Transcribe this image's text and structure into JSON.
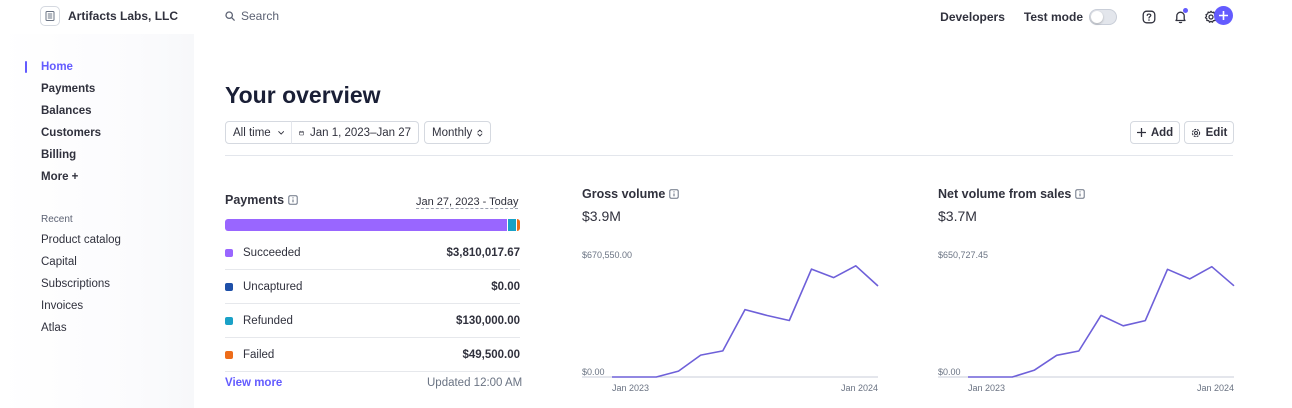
{
  "app": {
    "account_name": "Artifacts Labs, LLC",
    "search_placeholder": "Search",
    "developers_label": "Developers",
    "test_mode_label": "Test mode"
  },
  "colors": {
    "accent": "#635bff",
    "succeeded": "#9966ff",
    "uncaptured": "#1e4fa8",
    "refunded": "#1aa1c7",
    "failed": "#ed6c1a",
    "line": "#6e60d9"
  },
  "sidebar": {
    "items": [
      {
        "label": "Home",
        "active": true
      },
      {
        "label": "Payments"
      },
      {
        "label": "Balances"
      },
      {
        "label": "Customers"
      },
      {
        "label": "Billing"
      },
      {
        "label": "More +"
      }
    ],
    "recent_label": "Recent",
    "recent_items": [
      "Product catalog",
      "Capital",
      "Subscriptions",
      "Invoices",
      "Atlas"
    ]
  },
  "main": {
    "title": "Your overview",
    "filters": {
      "range": "All time",
      "dates": "Jan 1, 2023–Jan 27",
      "interval": "Monthly"
    },
    "add_label": "Add",
    "edit_label": "Edit"
  },
  "payments": {
    "title": "Payments",
    "date_range": "Jan 27, 2023 - Today",
    "breakdown": [
      {
        "label": "Succeeded",
        "value": "$3,810,017.67",
        "amount": 3810017.67,
        "color": "#9966ff"
      },
      {
        "label": "Uncaptured",
        "value": "$0.00",
        "amount": 0,
        "color": "#1e4fa8"
      },
      {
        "label": "Refunded",
        "value": "$130,000.00",
        "amount": 130000,
        "color": "#1aa1c7"
      },
      {
        "label": "Failed",
        "value": "$49,500.00",
        "amount": 49500,
        "color": "#ed6c1a"
      }
    ],
    "view_more": "View more",
    "updated": "Updated 12:00 AM"
  },
  "chart_data": [
    {
      "type": "line",
      "title": "Gross volume",
      "total": "$3.9M",
      "y_max_label": "$670,550.00",
      "y_min_label": "$0.00",
      "x_start_label": "Jan 2023",
      "x_end_label": "Jan 2024",
      "ylim": [
        0,
        670550
      ],
      "x": [
        "2023-01",
        "2023-02",
        "2023-03",
        "2023-04",
        "2023-05",
        "2023-06",
        "2023-07",
        "2023-08",
        "2023-09",
        "2023-10",
        "2023-11",
        "2023-12",
        "2024-01"
      ],
      "values": [
        0,
        0,
        0,
        35000,
        130000,
        155000,
        400000,
        365000,
        335000,
        640000,
        590000,
        660000,
        540000
      ]
    },
    {
      "type": "line",
      "title": "Net volume from sales",
      "total": "$3.7M",
      "y_max_label": "$650,727.45",
      "y_min_label": "$0.00",
      "x_start_label": "Jan 2023",
      "x_end_label": "Jan 2024",
      "ylim": [
        0,
        650727.45
      ],
      "x": [
        "2023-01",
        "2023-02",
        "2023-03",
        "2023-04",
        "2023-05",
        "2023-06",
        "2023-07",
        "2023-08",
        "2023-09",
        "2023-10",
        "2023-11",
        "2023-12",
        "2024-01"
      ],
      "values": [
        0,
        0,
        0,
        40000,
        125000,
        150000,
        355000,
        295000,
        325000,
        620000,
        565000,
        635000,
        525000
      ]
    }
  ]
}
